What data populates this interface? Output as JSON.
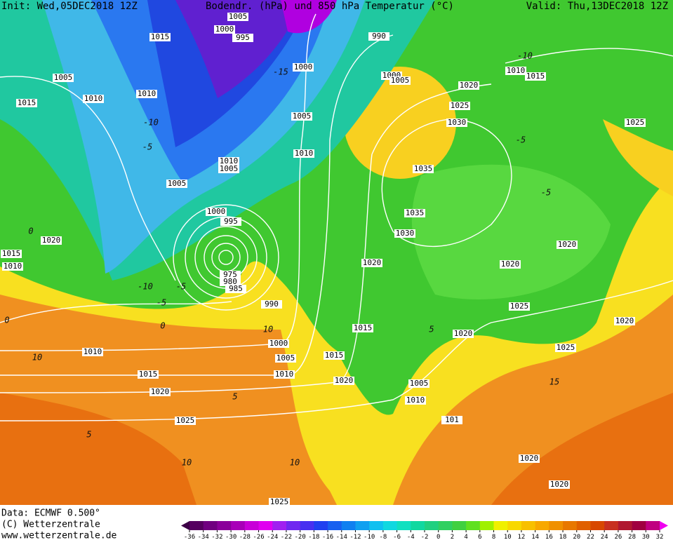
{
  "header": {
    "init": "Init: Wed,05DEC2018 12Z",
    "title": "Bodendr. (hPa) und 850 hPa Temperatur (°C)",
    "valid": "Valid: Thu,13DEC2018 12Z"
  },
  "isobar_labels": [
    "1005",
    "1000",
    "995",
    "1015",
    "990",
    "1000",
    "1005",
    "1010",
    "1010",
    "1015",
    "1000",
    "1005",
    "1020",
    "1010",
    "1015",
    "1025",
    "1030",
    "1025",
    "1005",
    "1010",
    "1010",
    "1005",
    "1035",
    "1005",
    "1035",
    "1030",
    "1000",
    "995",
    "1020",
    "1015",
    "1010",
    "1020",
    "1020",
    "1020",
    "975",
    "980",
    "985",
    "990",
    "1025",
    "1020",
    "1015",
    "1020",
    "1000",
    "1025",
    "1010",
    "1005",
    "1015",
    "1015",
    "1010",
    "1020",
    "1005",
    "1020",
    "1010",
    "1025",
    "101",
    "1020",
    "1020",
    "1025"
  ],
  "temperature_labels": [
    "-15",
    "-10",
    "-5",
    "0",
    "-5",
    "-10",
    "-5",
    "0",
    "5",
    "10",
    "-10",
    "-5",
    "10",
    "0",
    "5",
    "10",
    "-5",
    "5",
    "10",
    "15"
  ],
  "footer": {
    "data": "Data: ECMWF   0.500°",
    "copyright": "(C) Wetterzentrale",
    "url": "www.wetterzentrale.de"
  },
  "colorbar": {
    "ticks": [
      -36,
      -34,
      -32,
      -30,
      -28,
      -26,
      -24,
      -22,
      -20,
      -18,
      -16,
      -14,
      -12,
      -10,
      -8,
      -6,
      -4,
      -2,
      0,
      2,
      4,
      6,
      8,
      10,
      12,
      14,
      16,
      18,
      20,
      22,
      24,
      26,
      28,
      30,
      32
    ],
    "colors": [
      "#3c0046",
      "#55005f",
      "#700080",
      "#8a009a",
      "#a800b8",
      "#c800d8",
      "#e000f0",
      "#a020f0",
      "#7028f0",
      "#4830f0",
      "#2040f0",
      "#1860f0",
      "#1080f0",
      "#10a0f0",
      "#10c0f0",
      "#10d8e0",
      "#10e0c0",
      "#10d8a0",
      "#20d080",
      "#30d060",
      "#40d040",
      "#60e020",
      "#a0f000",
      "#f0f000",
      "#f8d800",
      "#f8c000",
      "#f8a800",
      "#f09000",
      "#e87800",
      "#e06000",
      "#d84800",
      "#c83020",
      "#b01830",
      "#a00040",
      "#c00080",
      "#e000c0",
      "#f000f0"
    ]
  }
}
